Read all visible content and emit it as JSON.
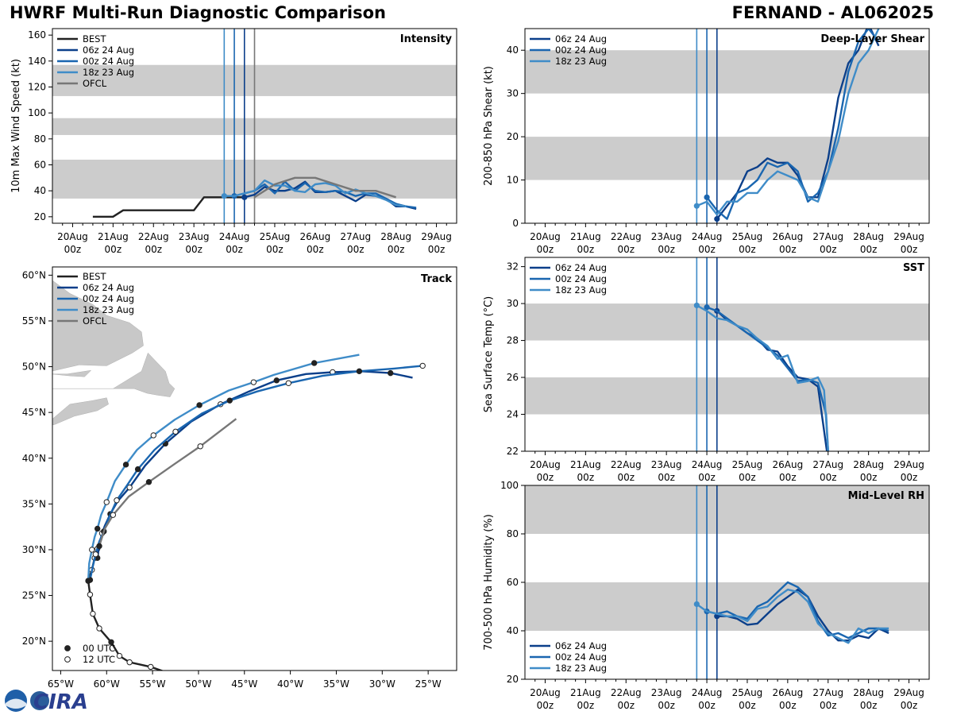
{
  "header": {
    "title_left": "HWRF Multi-Run Diagnostic Comparison",
    "title_right": "FERNAND - AL062025"
  },
  "logo": {
    "text": "CIRA"
  },
  "colors": {
    "best": "#222222",
    "r1": "#0b3f8a",
    "r2": "#1a66b0",
    "r3": "#3f8cc8",
    "ofcl": "#777777",
    "band": "#cccccc",
    "land": "#c8c8c8"
  },
  "series_names": [
    "BEST",
    "06z 24 Aug",
    "00z 24 Aug",
    "18z 23 Aug",
    "OFCL"
  ],
  "time_axis": {
    "ticks": [
      {
        "top": "20Aug",
        "bottom": "00z"
      },
      {
        "top": "21Aug",
        "bottom": "00z"
      },
      {
        "top": "22Aug",
        "bottom": "00z"
      },
      {
        "top": "23Aug",
        "bottom": "00z"
      },
      {
        "top": "24Aug",
        "bottom": "00z"
      },
      {
        "top": "25Aug",
        "bottom": "00z"
      },
      {
        "top": "26Aug",
        "bottom": "00z"
      },
      {
        "top": "27Aug",
        "bottom": "00z"
      },
      {
        "top": "28Aug",
        "bottom": "00z"
      },
      {
        "top": "29Aug",
        "bottom": "00z"
      }
    ]
  },
  "chart_data": [
    {
      "id": "intensity",
      "type": "line",
      "title": "Intensity",
      "ylabel": "10m Max Wind Speed (kt)",
      "xlabel": "",
      "xlim": [
        -0.5,
        9.5
      ],
      "ylim": [
        15,
        165
      ],
      "yticks": [
        20,
        40,
        60,
        80,
        100,
        120,
        140,
        160
      ],
      "bands": [
        [
          34,
          64
        ],
        [
          83,
          96
        ],
        [
          113,
          137
        ]
      ],
      "init_lines": [
        {
          "x": 3.75,
          "series": "18z 23 Aug"
        },
        {
          "x": 4.0,
          "series": "00z 24 Aug"
        },
        {
          "x": 4.25,
          "series": "06z 24 Aug"
        },
        {
          "x": 4.5,
          "series": "OFCL"
        }
      ],
      "series": [
        {
          "name": "BEST",
          "x": [
            0.5,
            1.0,
            1.25,
            1.5,
            2.0,
            2.5,
            3.0,
            3.25,
            3.5,
            3.75,
            4.0,
            4.25
          ],
          "values": [
            20,
            20,
            25,
            25,
            25,
            25,
            25,
            35,
            35,
            35,
            35,
            35
          ]
        },
        {
          "name": "06z 24 Aug",
          "x": [
            4.25,
            4.5,
            4.75,
            5.0,
            5.25,
            5.5,
            5.75,
            6.0,
            6.25,
            6.5,
            6.75,
            7.0,
            7.25,
            7.5,
            7.75,
            8.0,
            8.25,
            8.5
          ],
          "values": [
            35,
            37,
            43,
            40,
            40,
            42,
            47,
            39,
            39,
            40,
            36,
            32,
            37,
            36,
            34,
            28,
            28,
            26
          ]
        },
        {
          "name": "00z 24 Aug",
          "x": [
            4.0,
            4.25,
            4.5,
            4.75,
            5.0,
            5.25,
            5.5,
            5.75,
            6.0,
            6.25,
            6.5,
            6.75,
            7.0,
            7.25,
            7.5,
            7.75,
            8.0,
            8.25,
            8.5
          ],
          "values": [
            36,
            38,
            40,
            45,
            38,
            47,
            40,
            46,
            40,
            39,
            40,
            39,
            36,
            38,
            38,
            34,
            30,
            28,
            27
          ]
        },
        {
          "name": "18z 23 Aug",
          "x": [
            3.75,
            4.0,
            4.25,
            4.5,
            4.75,
            5.0,
            5.25,
            5.5,
            5.75,
            6.0,
            6.25,
            6.5,
            6.75,
            7.0,
            7.25,
            7.5,
            7.75,
            8.0,
            8.25
          ],
          "values": [
            36,
            36,
            38,
            40,
            48,
            44,
            44,
            40,
            39,
            45,
            46,
            44,
            38,
            41,
            38,
            36,
            33,
            29,
            28
          ]
        },
        {
          "name": "OFCL",
          "x": [
            4.5,
            5.0,
            5.5,
            6.0,
            6.5,
            7.0,
            7.5,
            8.0
          ],
          "values": [
            35,
            45,
            50,
            50,
            45,
            40,
            40,
            35
          ]
        }
      ]
    },
    {
      "id": "shear",
      "type": "line",
      "title": "Deep-Layer Shear",
      "ylabel": "200-850 hPa Shear (kt)",
      "xlabel": "",
      "xlim": [
        -0.5,
        9.5
      ],
      "ylim": [
        0,
        45
      ],
      "yticks": [
        0,
        10,
        20,
        30,
        40
      ],
      "bands": [
        [
          10,
          20
        ],
        [
          30,
          40
        ]
      ],
      "init_lines": [
        {
          "x": 3.75,
          "series": "18z 23 Aug"
        },
        {
          "x": 4.0,
          "series": "00z 24 Aug"
        },
        {
          "x": 4.25,
          "series": "06z 24 Aug"
        }
      ],
      "series": [
        {
          "name": "06z 24 Aug",
          "x": [
            4.25,
            4.5,
            4.75,
            5.0,
            5.25,
            5.5,
            5.75,
            6.0,
            6.25,
            6.5,
            6.75,
            7.0,
            7.25,
            7.5,
            7.75,
            8.0,
            8.25
          ],
          "values": [
            1,
            4,
            7,
            12,
            13,
            15,
            14,
            14,
            11,
            6,
            6,
            15,
            29,
            37,
            40,
            46,
            41
          ]
        },
        {
          "name": "00z 24 Aug",
          "x": [
            4.0,
            4.25,
            4.5,
            4.75,
            5.0,
            5.25,
            5.5,
            5.75,
            6.0,
            6.25,
            6.5,
            6.75,
            7.0,
            7.25,
            7.5,
            7.75,
            8.0,
            8.25
          ],
          "values": [
            6,
            3,
            1,
            7,
            8,
            10,
            14,
            13,
            14,
            12,
            5,
            7,
            12,
            22,
            35,
            42,
            45,
            42
          ]
        },
        {
          "name": "18z 23 Aug",
          "x": [
            3.75,
            4.0,
            4.25,
            4.5,
            4.75,
            5.0,
            5.25,
            5.5,
            5.75,
            6.0,
            6.25,
            6.5,
            6.75,
            7.0,
            7.25,
            7.5,
            7.75,
            8.0,
            8.25
          ],
          "values": [
            4,
            5,
            2,
            5,
            5,
            7,
            7,
            10,
            12,
            11,
            10,
            6,
            5,
            12,
            19,
            30,
            37,
            40,
            45
          ]
        }
      ]
    },
    {
      "id": "track",
      "type": "line",
      "title": "Track",
      "ylabel": "",
      "xlabel": "",
      "xlim": [
        -65.9,
        -21.9
      ],
      "ylim": [
        16.8,
        60.9
      ],
      "xticks": [
        -65,
        -60,
        -55,
        -50,
        -45,
        -40,
        -35,
        -30,
        -25
      ],
      "xticklabels": [
        "65°W",
        "60°W",
        "55°W",
        "50°W",
        "45°W",
        "40°W",
        "35°W",
        "30°W",
        "25°W"
      ],
      "yticks": [
        20,
        25,
        30,
        35,
        40,
        45,
        50,
        55,
        60
      ],
      "yticklabels": [
        "20°N",
        "25°N",
        "30°N",
        "35°N",
        "40°N",
        "45°N",
        "50°N",
        "55°N",
        "60°N"
      ],
      "marker_legend": [
        "00 UTC",
        "12 UTC"
      ],
      "series": [
        {
          "name": "BEST",
          "lon": [
            -53.2,
            -55.2,
            -57.5,
            -58.6,
            -59.5,
            -60.8,
            -61.5,
            -61.8,
            -62.0,
            -61.6,
            -61.3,
            -61.0
          ],
          "lat": [
            16.5,
            17.2,
            17.7,
            18.4,
            19.9,
            21.4,
            23.0,
            25.1,
            26.6,
            27.8,
            29.1,
            30.1
          ]
        },
        {
          "name": "06z 24 Aug",
          "lon": [
            -61.0,
            -60.8,
            -60.5,
            -60.2,
            -59.6,
            -58.8,
            -57.5,
            -55.8,
            -53.6,
            -50.8,
            -47.6,
            -44.5,
            -41.5,
            -38.3,
            -35.4,
            -32.3,
            -29.1,
            -26.7
          ],
          "lat": [
            29.1,
            30.5,
            31.8,
            32.6,
            33.9,
            35.3,
            36.8,
            39.2,
            41.6,
            44.0,
            45.9,
            47.3,
            48.5,
            49.2,
            49.4,
            49.5,
            49.3,
            48.8
          ]
        },
        {
          "name": "00z 24 Aug",
          "lon": [
            -61.8,
            -61.5,
            -61.2,
            -60.8,
            -60.3,
            -59.7,
            -58.9,
            -57.8,
            -56.6,
            -54.8,
            -52.5,
            -49.6,
            -46.6,
            -43.6,
            -40.2,
            -36.5,
            -32.5,
            -28.7,
            -25.6
          ],
          "lat": [
            26.7,
            28.2,
            29.5,
            30.9,
            32.0,
            33.6,
            35.4,
            37.0,
            38.8,
            40.9,
            42.9,
            44.9,
            46.3,
            47.3,
            48.2,
            49.0,
            49.5,
            49.8,
            50.1
          ]
        },
        {
          "name": "18z 23 Aug",
          "lon": [
            -62.0,
            -61.9,
            -61.6,
            -61.3,
            -61.0,
            -60.6,
            -60.0,
            -59.1,
            -57.9,
            -56.7,
            -54.9,
            -52.6,
            -49.9,
            -46.7,
            -44.0,
            -41.8,
            -37.4,
            -32.5
          ],
          "lat": [
            26.6,
            28.5,
            30.0,
            31.4,
            32.3,
            33.8,
            35.2,
            37.5,
            39.3,
            40.9,
            42.5,
            44.2,
            45.8,
            47.4,
            48.3,
            49.1,
            50.4,
            51.3
          ]
        },
        {
          "name": "OFCL",
          "lon": [
            -60.8,
            -60.2,
            -59.3,
            -57.6,
            -55.4,
            -52.7,
            -49.8,
            -45.9
          ],
          "lat": [
            30.4,
            32.3,
            33.8,
            35.8,
            37.4,
            39.3,
            41.3,
            44.3
          ]
        }
      ]
    },
    {
      "id": "sst",
      "type": "line",
      "title": "SST",
      "ylabel": "Sea Surface Temp (°C)",
      "xlabel": "",
      "xlim": [
        -0.5,
        9.5
      ],
      "ylim": [
        22,
        32.5
      ],
      "yticks": [
        22,
        24,
        26,
        28,
        30,
        32
      ],
      "bands": [
        [
          24,
          26
        ],
        [
          28,
          30
        ]
      ],
      "init_lines": [
        {
          "x": 3.75,
          "series": "18z 23 Aug"
        },
        {
          "x": 4.0,
          "series": "00z 24 Aug"
        },
        {
          "x": 4.25,
          "series": "06z 24 Aug"
        }
      ],
      "series": [
        {
          "name": "06z 24 Aug",
          "x": [
            4.25,
            4.5,
            4.75,
            5.0,
            5.25,
            5.5,
            5.75,
            6.0,
            6.25,
            6.5,
            6.75,
            6.9,
            7.0
          ],
          "values": [
            29.6,
            29.1,
            28.8,
            28.4,
            28.1,
            27.5,
            27.4,
            26.6,
            26.0,
            25.9,
            25.5,
            23.1,
            21.5
          ]
        },
        {
          "name": "00z 24 Aug",
          "x": [
            4.0,
            4.25,
            4.5,
            4.75,
            5.0,
            5.25,
            5.5,
            5.75,
            6.0,
            6.25,
            6.5,
            6.75,
            6.95,
            7.0
          ],
          "values": [
            29.8,
            29.6,
            29.2,
            28.8,
            28.4,
            28.0,
            27.6,
            27.2,
            26.5,
            25.8,
            25.9,
            25.7,
            24.0,
            22.0
          ]
        },
        {
          "name": "18z 23 Aug",
          "x": [
            3.75,
            4.0,
            4.25,
            4.5,
            4.75,
            5.0,
            5.25,
            5.5,
            5.75,
            6.0,
            6.25,
            6.5,
            6.75,
            6.9,
            7.0
          ],
          "values": [
            29.9,
            29.6,
            29.2,
            29.1,
            28.8,
            28.6,
            28.1,
            27.7,
            27.0,
            27.2,
            25.7,
            25.8,
            26.0,
            25.3,
            22.0
          ]
        }
      ]
    },
    {
      "id": "rh",
      "type": "line",
      "title": "Mid-Level RH",
      "ylabel": "700-500 hPa Humidity (%)",
      "xlabel": "",
      "xlim": [
        -0.5,
        9.5
      ],
      "ylim": [
        20,
        100
      ],
      "yticks": [
        20,
        40,
        60,
        80,
        100
      ],
      "bands": [
        [
          40,
          60
        ],
        [
          80,
          100
        ]
      ],
      "init_lines": [
        {
          "x": 3.75,
          "series": "18z 23 Aug"
        },
        {
          "x": 4.0,
          "series": "00z 24 Aug"
        },
        {
          "x": 4.25,
          "series": "06z 24 Aug"
        }
      ],
      "series": [
        {
          "name": "06z 24 Aug",
          "x": [
            4.25,
            4.5,
            4.75,
            5.0,
            5.25,
            5.5,
            5.75,
            6.0,
            6.25,
            6.5,
            6.75,
            7.0,
            7.25,
            7.5,
            7.75,
            8.0,
            8.25,
            8.5
          ],
          "values": [
            46,
            46,
            45,
            42.5,
            43,
            47,
            51,
            54,
            57,
            54,
            46,
            40,
            36,
            36,
            38,
            37,
            41,
            39
          ]
        },
        {
          "name": "00z 24 Aug",
          "x": [
            4.0,
            4.25,
            4.5,
            4.75,
            5.0,
            5.25,
            5.5,
            5.75,
            6.0,
            6.25,
            6.5,
            6.75,
            7.0,
            7.25,
            7.5,
            7.75,
            8.0,
            8.25,
            8.5
          ],
          "values": [
            48,
            47,
            48,
            46,
            45,
            50,
            52,
            56,
            60,
            58,
            54,
            44,
            38,
            39,
            37,
            39,
            41,
            41,
            40
          ]
        },
        {
          "name": "18z 23 Aug",
          "x": [
            3.75,
            4.0,
            4.25,
            4.5,
            4.75,
            5.0,
            5.25,
            5.5,
            5.75,
            6.0,
            6.25,
            6.5,
            6.75,
            7.0,
            7.25,
            7.5,
            7.75,
            8.0,
            8.25,
            8.5
          ],
          "values": [
            51,
            48,
            47,
            46,
            46,
            44,
            49,
            50,
            54,
            57,
            56,
            52,
            43,
            39,
            37,
            35,
            41,
            39,
            41,
            41
          ]
        }
      ]
    }
  ]
}
